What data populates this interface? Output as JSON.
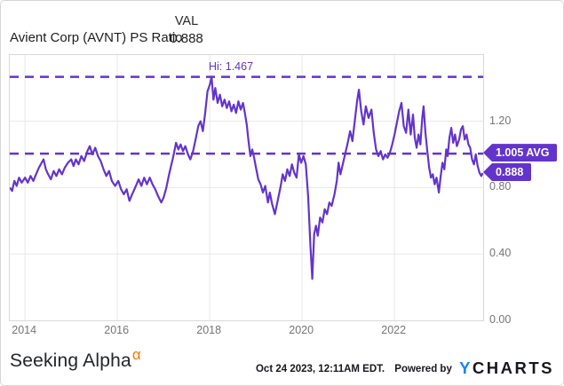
{
  "header": {
    "title": "Avient Corp (AVNT) PS Ratio",
    "val_label": "VAL",
    "val_value": "0.888"
  },
  "chart_data": {
    "type": "line",
    "title": "Avient Corp (AVNT) PS Ratio",
    "series_name": "AVNT PS Ratio",
    "line_color": "#6334cc",
    "grid": true,
    "legend_position": "none",
    "xlim": [
      2013.67,
      2023.92
    ],
    "ylim": [
      0,
      1.599
    ],
    "x_ticks": [
      2014,
      2016,
      2018,
      2020,
      2022
    ],
    "x_tick_labels": [
      "2014",
      "2016",
      "2018",
      "2020",
      "2022"
    ],
    "y_ticks": [
      1.2,
      0.8,
      0.4,
      0.0
    ],
    "y_tick_labels": [
      "1.20",
      "0.80",
      "0.40",
      "0.00"
    ],
    "hi_line": {
      "label": "Hi: 1.467",
      "value": 1.467
    },
    "avg_line": {
      "label": "1.005 AVG",
      "value": 1.005
    },
    "last_label": {
      "label": "0.888",
      "value": 0.888
    },
    "points": [
      [
        2013.67,
        0.8
      ],
      [
        2013.72,
        0.78
      ],
      [
        2013.77,
        0.84
      ],
      [
        2013.82,
        0.81
      ],
      [
        2013.87,
        0.86
      ],
      [
        2013.93,
        0.83
      ],
      [
        2014.0,
        0.86
      ],
      [
        2014.06,
        0.83
      ],
      [
        2014.12,
        0.87
      ],
      [
        2014.18,
        0.84
      ],
      [
        2014.24,
        0.88
      ],
      [
        2014.3,
        0.92
      ],
      [
        2014.36,
        0.95
      ],
      [
        2014.4,
        0.97
      ],
      [
        2014.45,
        0.91
      ],
      [
        2014.5,
        0.88
      ],
      [
        2014.56,
        0.85
      ],
      [
        2014.62,
        0.9
      ],
      [
        2014.68,
        0.87
      ],
      [
        2014.74,
        0.91
      ],
      [
        2014.8,
        0.88
      ],
      [
        2014.86,
        0.92
      ],
      [
        2014.93,
        0.95
      ],
      [
        2015.0,
        0.97
      ],
      [
        2015.05,
        0.93
      ],
      [
        2015.1,
        0.97
      ],
      [
        2015.16,
        0.94
      ],
      [
        2015.22,
        0.99
      ],
      [
        2015.28,
        0.96
      ],
      [
        2015.35,
        1.02
      ],
      [
        2015.4,
        1.05
      ],
      [
        2015.46,
        1.0
      ],
      [
        2015.52,
        1.04
      ],
      [
        2015.58,
        0.99
      ],
      [
        2015.64,
        0.96
      ],
      [
        2015.7,
        0.91
      ],
      [
        2015.76,
        0.87
      ],
      [
        2015.82,
        0.9
      ],
      [
        2015.88,
        0.84
      ],
      [
        2015.95,
        0.81
      ],
      [
        2016.02,
        0.84
      ],
      [
        2016.08,
        0.79
      ],
      [
        2016.14,
        0.76
      ],
      [
        2016.2,
        0.79
      ],
      [
        2016.26,
        0.72
      ],
      [
        2016.32,
        0.76
      ],
      [
        2016.4,
        0.81
      ],
      [
        2016.46,
        0.85
      ],
      [
        2016.52,
        0.81
      ],
      [
        2016.58,
        0.86
      ],
      [
        2016.64,
        0.82
      ],
      [
        2016.7,
        0.86
      ],
      [
        2016.76,
        0.82
      ],
      [
        2016.82,
        0.79
      ],
      [
        2016.88,
        0.75
      ],
      [
        2016.95,
        0.71
      ],
      [
        2017.0,
        0.74
      ],
      [
        2017.06,
        0.8
      ],
      [
        2017.12,
        0.88
      ],
      [
        2017.17,
        0.94
      ],
      [
        2017.22,
        1.0
      ],
      [
        2017.27,
        1.07
      ],
      [
        2017.32,
        1.03
      ],
      [
        2017.37,
        1.06
      ],
      [
        2017.42,
        1.02
      ],
      [
        2017.47,
        1.05
      ],
      [
        2017.53,
        1.0
      ],
      [
        2017.58,
        0.97
      ],
      [
        2017.64,
        1.02
      ],
      [
        2017.7,
        1.1
      ],
      [
        2017.75,
        1.17
      ],
      [
        2017.8,
        1.2
      ],
      [
        2017.85,
        1.14
      ],
      [
        2017.9,
        1.25
      ],
      [
        2017.95,
        1.38
      ],
      [
        2018.0,
        1.42
      ],
      [
        2018.04,
        1.467
      ],
      [
        2018.08,
        1.33
      ],
      [
        2018.12,
        1.4
      ],
      [
        2018.17,
        1.31
      ],
      [
        2018.22,
        1.36
      ],
      [
        2018.27,
        1.29
      ],
      [
        2018.32,
        1.33
      ],
      [
        2018.37,
        1.28
      ],
      [
        2018.42,
        1.32
      ],
      [
        2018.47,
        1.26
      ],
      [
        2018.52,
        1.3
      ],
      [
        2018.57,
        1.25
      ],
      [
        2018.62,
        1.32
      ],
      [
        2018.67,
        1.27
      ],
      [
        2018.72,
        1.31
      ],
      [
        2018.76,
        1.25
      ],
      [
        2018.8,
        1.18
      ],
      [
        2018.84,
        1.08
      ],
      [
        2018.88,
        0.99
      ],
      [
        2018.92,
        1.03
      ],
      [
        2018.96,
        0.98
      ],
      [
        2019.0,
        0.92
      ],
      [
        2019.05,
        0.85
      ],
      [
        2019.1,
        0.82
      ],
      [
        2019.15,
        0.77
      ],
      [
        2019.2,
        0.81
      ],
      [
        2019.26,
        0.71
      ],
      [
        2019.3,
        0.77
      ],
      [
        2019.35,
        0.7
      ],
      [
        2019.41,
        0.64
      ],
      [
        2019.47,
        0.72
      ],
      [
        2019.53,
        0.8
      ],
      [
        2019.58,
        0.88
      ],
      [
        2019.63,
        0.84
      ],
      [
        2019.68,
        0.91
      ],
      [
        2019.73,
        0.87
      ],
      [
        2019.78,
        0.94
      ],
      [
        2019.83,
        0.89
      ],
      [
        2019.88,
        0.86
      ],
      [
        2019.93,
        1.0
      ],
      [
        2019.98,
        0.95
      ],
      [
        2020.03,
        0.99
      ],
      [
        2020.08,
        0.94
      ],
      [
        2020.13,
        0.75
      ],
      [
        2020.18,
        0.45
      ],
      [
        2020.22,
        0.25
      ],
      [
        2020.26,
        0.52
      ],
      [
        2020.3,
        0.57
      ],
      [
        2020.34,
        0.51
      ],
      [
        2020.39,
        0.62
      ],
      [
        2020.44,
        0.59
      ],
      [
        2020.49,
        0.67
      ],
      [
        2020.54,
        0.64
      ],
      [
        2020.59,
        0.71
      ],
      [
        2020.64,
        0.69
      ],
      [
        2020.7,
        0.76
      ],
      [
        2020.75,
        0.84
      ],
      [
        2020.79,
        0.95
      ],
      [
        2020.83,
        0.88
      ],
      [
        2020.88,
        0.94
      ],
      [
        2020.93,
        1.0
      ],
      [
        2020.98,
        1.06
      ],
      [
        2021.04,
        1.14
      ],
      [
        2021.09,
        1.08
      ],
      [
        2021.14,
        1.2
      ],
      [
        2021.19,
        1.32
      ],
      [
        2021.23,
        1.39
      ],
      [
        2021.28,
        1.26
      ],
      [
        2021.33,
        1.18
      ],
      [
        2021.38,
        1.29
      ],
      [
        2021.44,
        1.22
      ],
      [
        2021.5,
        1.27
      ],
      [
        2021.55,
        1.13
      ],
      [
        2021.6,
        1.03
      ],
      [
        2021.65,
        0.99
      ],
      [
        2021.7,
        1.02
      ],
      [
        2021.75,
        0.97
      ],
      [
        2021.8,
        1.0
      ],
      [
        2021.85,
        0.98
      ],
      [
        2021.9,
        1.01
      ],
      [
        2021.95,
        1.06
      ],
      [
        2022.0,
        1.12
      ],
      [
        2022.05,
        1.19
      ],
      [
        2022.1,
        1.26
      ],
      [
        2022.15,
        1.31
      ],
      [
        2022.2,
        1.17
      ],
      [
        2022.25,
        1.13
      ],
      [
        2022.3,
        1.27
      ],
      [
        2022.35,
        1.12
      ],
      [
        2022.4,
        1.24
      ],
      [
        2022.44,
        1.1
      ],
      [
        2022.48,
        1.04
      ],
      [
        2022.52,
        1.12
      ],
      [
        2022.56,
        1.06
      ],
      [
        2022.6,
        1.22
      ],
      [
        2022.63,
        1.29
      ],
      [
        2022.67,
        1.13
      ],
      [
        2022.71,
        1.02
      ],
      [
        2022.75,
        0.92
      ],
      [
        2022.79,
        0.86
      ],
      [
        2022.83,
        0.88
      ],
      [
        2022.87,
        0.82
      ],
      [
        2022.91,
        0.86
      ],
      [
        2022.96,
        0.77
      ],
      [
        2023.0,
        0.87
      ],
      [
        2023.04,
        0.95
      ],
      [
        2023.08,
        0.91
      ],
      [
        2023.12,
        1.03
      ],
      [
        2023.15,
        0.99
      ],
      [
        2023.19,
        1.1
      ],
      [
        2023.23,
        1.16
      ],
      [
        2023.27,
        1.07
      ],
      [
        2023.31,
        1.12
      ],
      [
        2023.35,
        1.05
      ],
      [
        2023.4,
        1.09
      ],
      [
        2023.44,
        1.15
      ],
      [
        2023.48,
        1.17
      ],
      [
        2023.52,
        1.09
      ],
      [
        2023.56,
        1.12
      ],
      [
        2023.6,
        1.06
      ],
      [
        2023.64,
        1.04
      ],
      [
        2023.68,
        0.97
      ],
      [
        2023.72,
        0.94
      ],
      [
        2023.76,
        1.0
      ],
      [
        2023.8,
        0.93
      ],
      [
        2023.84,
        0.89
      ],
      [
        2023.88,
        0.87
      ],
      [
        2023.91,
        0.888
      ]
    ]
  },
  "footer": {
    "brand": "Seeking Alpha",
    "brand_alpha": "α",
    "timestamp": "Oct 24 2023, 12:11AM EDT.",
    "powered_by": "Powered by",
    "ycharts_y": "Y",
    "ycharts_rest": "CHARTS"
  },
  "colors": {
    "accent_purple": "#6334cc",
    "grid": "#e8e8e8",
    "axis_text": "#757575",
    "ycharts_blue": "#1784fb",
    "alpha_orange": "#ff7500"
  }
}
